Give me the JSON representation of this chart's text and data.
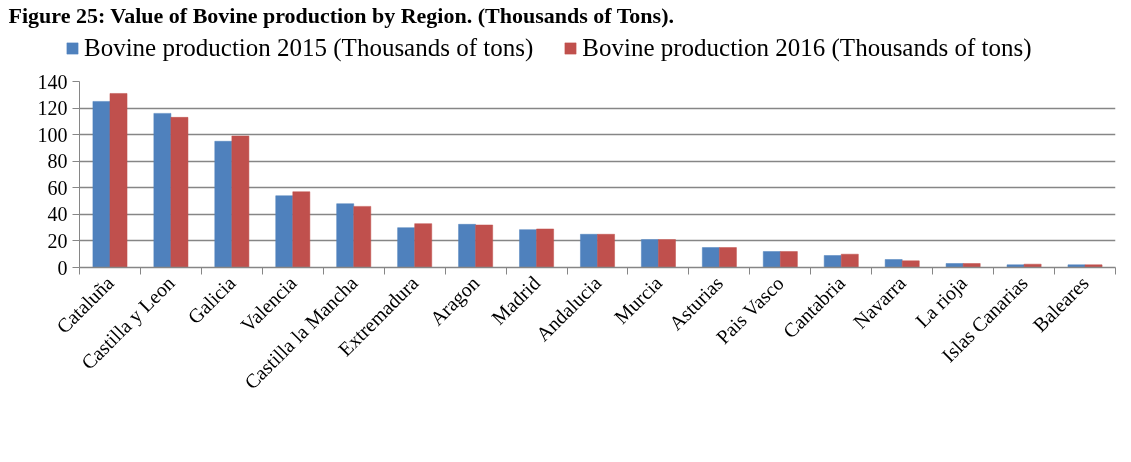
{
  "chart_data": {
    "type": "bar",
    "title": "Figure 25: Value of Bovine production by Region. (Thousands of Tons).",
    "categories": [
      "Cataluña",
      "Castilla y Leon",
      "Galicia",
      "Valencia",
      "Castilla la Mancha",
      "Extremadura",
      "Aragon",
      "Madrid",
      "Andalucia",
      "Murcia",
      "Asturias",
      "Pais Vasco",
      "Cantabria",
      "Navarra",
      "La rioja",
      "Islas Canarias",
      "Baleares"
    ],
    "series": [
      {
        "name": "Bovine production 2015 (Thousands of tons)",
        "color": "#4f81bd",
        "values": [
          125,
          116,
          95,
          54,
          48,
          30,
          32.5,
          28.5,
          25,
          21,
          15,
          12,
          9,
          6,
          3,
          2,
          2
        ]
      },
      {
        "name": "Bovine production 2016 (Thousands of tons)",
        "color": "#c0504d",
        "values": [
          131,
          113,
          99,
          57,
          46,
          33,
          32,
          29,
          25,
          21,
          15,
          12,
          10,
          5,
          3,
          2.5,
          2
        ]
      }
    ],
    "ylim": [
      0,
      140
    ],
    "yticks": [
      0,
      20,
      40,
      60,
      80,
      100,
      120,
      140
    ],
    "grid": "y",
    "legend": "top"
  }
}
